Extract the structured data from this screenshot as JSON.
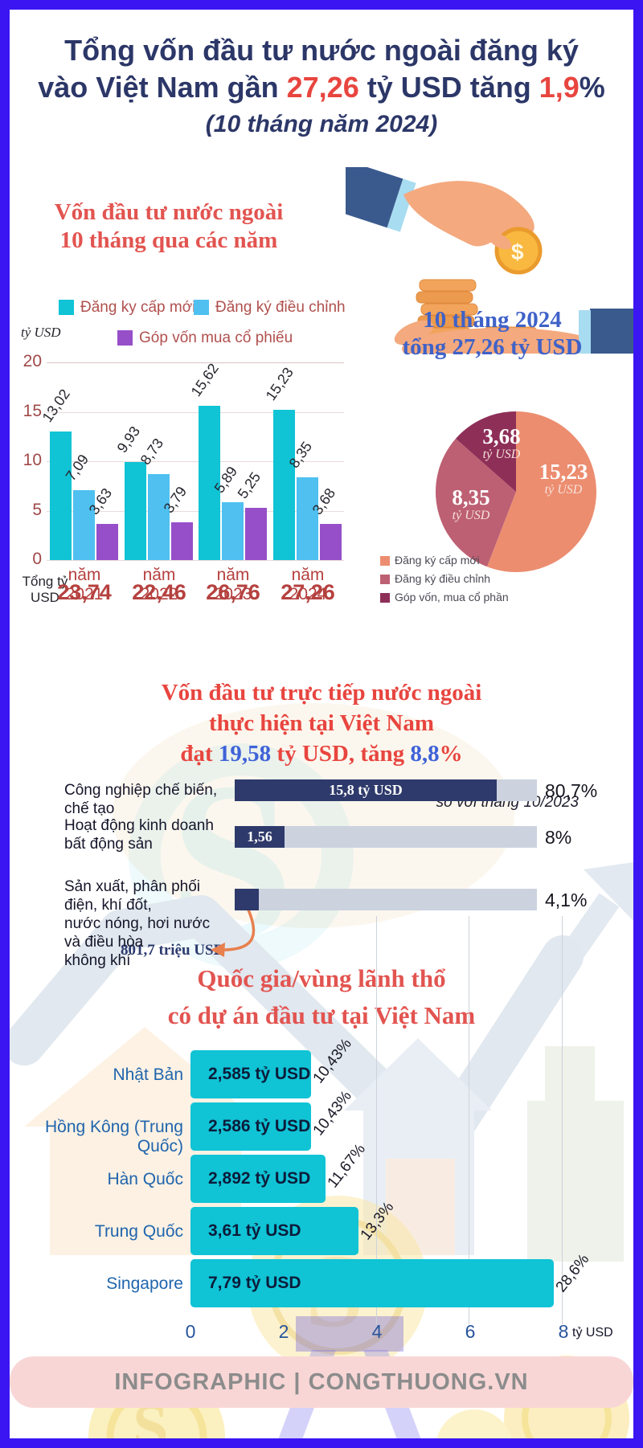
{
  "header": {
    "line1": "Tổng vốn đầu tư nước ngoài đăng ký",
    "line2_segments": [
      [
        "vào Việt Nam gần ",
        "navy"
      ],
      [
        "27,26",
        "red"
      ],
      [
        " tỷ USD tăng ",
        "navy"
      ],
      [
        "1,9",
        "red"
      ],
      [
        "%",
        "navy"
      ]
    ],
    "subtitle": "(10 tháng năm 2024)"
  },
  "section1": {
    "title_line1": "Vốn đầu tư nước ngoài",
    "title_line2": "10 tháng qua các năm",
    "axis_unit": "tỷ USD"
  },
  "section2": {
    "title_line1": "Vốn đầu tư trực tiếp nước ngoài",
    "title_line2": "thực hiện tại Việt Nam",
    "title_line3_segments": [
      [
        "đạt ",
        "red"
      ],
      [
        "19,58",
        "blue"
      ],
      [
        " tỷ USD, tăng ",
        "red"
      ],
      [
        "8,8",
        "blue"
      ],
      [
        "%",
        "red"
      ]
    ],
    "note": "so với tháng 10/2023"
  },
  "section3": {
    "title_line1": "Quốc gia/vùng lãnh thổ",
    "title_line2": "có dự án đầu tư tại Việt Nam"
  },
  "footer": {
    "text": "INFOGRAPHIC | CONGTHUONG.VN"
  },
  "colors": {
    "frame": "#3b16f3",
    "navy": "#2c3768",
    "red": "#e8453f",
    "blue": "#3f62d8",
    "teal": "#10c3d5",
    "light_blue": "#4fc0f0",
    "purple": "#964fc8",
    "salmon": "#ec8d70",
    "rose": "#bd6073",
    "maroon": "#8e2f58",
    "navy_bar": "#2e3a6b",
    "orange_arrow": "#e87f4e"
  },
  "chart_data": [
    {
      "id": "grouped-bars-10-months",
      "type": "bar",
      "title": "Vốn đầu tư nước ngoài 10 tháng qua các năm",
      "ylabel": "tỷ USD",
      "ylim": [
        0,
        20
      ],
      "yticks": [
        0,
        5,
        10,
        15,
        20
      ],
      "grid": true,
      "legend_position": "top",
      "categories": [
        "năm 2021",
        "năm 2022",
        "năm 2023",
        "năm 2024"
      ],
      "series": [
        {
          "name": "Đăng ky cấp mới",
          "color": "#10c3d5",
          "values": [
            13.02,
            9.93,
            15.62,
            15.23
          ],
          "labels": [
            "13,02",
            "9,93",
            "15,62",
            "15,23"
          ]
        },
        {
          "name": "Đăng ký điều chỉnh",
          "color": "#4fc0f0",
          "values": [
            7.09,
            8.73,
            5.89,
            8.35
          ],
          "labels": [
            "7,09",
            "8,73",
            "5,89",
            "8,35"
          ]
        },
        {
          "name": "Góp vốn mua cổ phiếu",
          "color": "#964fc8",
          "values": [
            3.63,
            3.79,
            5.25,
            3.68
          ],
          "labels": [
            "3,63",
            "3,79",
            "5,25",
            "3,68"
          ]
        }
      ],
      "totals_label": "Tổng tỷ USD",
      "totals": [
        "23,74",
        "22,46",
        "26,76",
        "27,26"
      ]
    },
    {
      "id": "pie-10-months-2024",
      "type": "pie",
      "title_line1": "10 tháng 2024",
      "title_line2": "tổng 27,26 tỷ USD",
      "slices": [
        {
          "label": "Đăng ký cấp mới",
          "value": 15.23,
          "display": "15,23",
          "unit": "tỷ USD",
          "color": "#ec8d70"
        },
        {
          "label": "Đăng ký điều chỉnh",
          "value": 8.35,
          "display": "8,35",
          "unit": "tỷ USD",
          "color": "#bd6073"
        },
        {
          "label": "Góp vốn, mua cổ phần",
          "value": 3.68,
          "display": "3,68",
          "unit": "tỷ USD",
          "color": "#8e2f58"
        }
      ]
    },
    {
      "id": "fdi-implemented-sectors",
      "type": "bar",
      "title": "Vốn đầu tư trực tiếp nước ngoài thực hiện tại Việt Nam đạt 19,58 tỷ USD, tăng 8,8%",
      "note": "so với tháng 10/2023",
      "rows": [
        {
          "label": "Công nghiệp chế biến, chế tạo",
          "value": 15.8,
          "bar_text": "15,8 tỷ USD",
          "pct": "80,7%"
        },
        {
          "label": "Hoạt động kinh doanh\nbất động sản",
          "value": 1.56,
          "bar_text": "1,56",
          "pct": "8%"
        },
        {
          "label": "Sản xuất, phân phối điện, khí đốt,\nnước nóng, hơi nước và điều hòa\nkhông khí",
          "value": 0.8017,
          "bar_text": "",
          "pct": "4,1%"
        }
      ],
      "annotation": "801,7 triệu USD"
    },
    {
      "id": "countries-investing",
      "type": "bar",
      "title": "Quốc gia/vùng lãnh thổ có dự án đầu tư tại Việt Nam",
      "categories": [
        "Nhật Bản",
        "Hồng Kông (Trung Quốc)",
        "Hàn Quốc",
        "Trung Quốc",
        "Singapore"
      ],
      "values": [
        2.585,
        2.586,
        2.892,
        3.61,
        7.79
      ],
      "bar_labels": [
        "2,585 tỷ USD",
        "2,586 tỷ USD",
        "2,892 tỷ USD",
        "3,61 tỷ USD",
        "7,79 tỷ USD"
      ],
      "pct_labels": [
        "10,43%",
        "10,43%",
        "11,67%",
        "13,3%",
        "28,6%"
      ],
      "xlim": [
        0,
        8
      ],
      "xticks": [
        "0",
        "2",
        "4",
        "6",
        "8"
      ],
      "xlabel": "tỷ USD",
      "grid": true
    }
  ]
}
